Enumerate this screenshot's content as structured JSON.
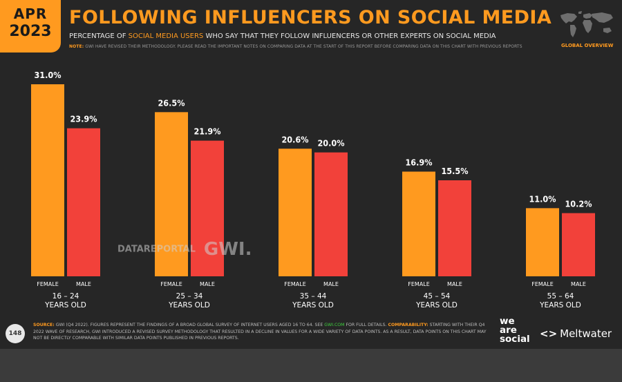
{
  "header": {
    "month": "APR",
    "year": "2023",
    "title": "FOLLOWING INFLUENCERS ON SOCIAL MEDIA",
    "subtitle_pre": "PERCENTAGE OF ",
    "subtitle_highlight": "SOCIAL MEDIA USERS",
    "subtitle_post": " WHO SAY THAT THEY FOLLOW INFLUENCERS OR OTHER EXPERTS ON SOCIAL MEDIA",
    "note_label": "NOTE:",
    "note_text": " GWI HAVE REVISED THEIR METHODOLOGY. PLEASE READ THE IMPORTANT NOTES ON COMPARING DATA AT THE START OF THIS REPORT BEFORE COMPARING DATA ON THIS CHART WITH PREVIOUS REPORTS",
    "section_label": "GLOBAL OVERVIEW"
  },
  "chart_data": {
    "type": "bar",
    "categories": [
      "16 – 24\nYEARS OLD",
      "25 – 34\nYEARS OLD",
      "35 – 44\nYEARS OLD",
      "45 – 54\nYEARS OLD",
      "55 – 64\nYEARS OLD"
    ],
    "series": [
      {
        "name": "FEMALE",
        "values": [
          31.0,
          26.5,
          20.6,
          16.9,
          11.0
        ],
        "color": "#FF9A1F"
      },
      {
        "name": "MALE",
        "values": [
          23.9,
          21.9,
          20.0,
          15.5,
          10.2
        ],
        "color": "#F2413A"
      }
    ],
    "value_suffix": "%",
    "ylim": [
      0,
      31
    ]
  },
  "watermark": {
    "dr": "DATAREPORTAL",
    "gwi": "GWI."
  },
  "footer": {
    "page_number": "148",
    "source_label": "SOURCE:",
    "source_text": " GWI (Q4 2022). FIGURES REPRESENT THE FINDINGS OF A BROAD GLOBAL SURVEY OF INTERNET USERS AGED 16 TO 64. SEE ",
    "source_link": "GWI.COM",
    "source_text2": " FOR FULL DETAILS. ",
    "comparability_label": "COMPARABILITY:",
    "comparability_text": " STARTING WITH THEIR Q4 2022 WAVE OF RESEARCH, GWI INTRODUCED A REVISED SURVEY METHODOLOGY THAT RESULTED IN A DECLINE IN VALUES FOR A WIDE VARIETY OF DATA POINTS. AS A RESULT, DATA POINTS ON THIS CHART MAY NOT BE DIRECTLY COMPARABLE WITH SIMILAR DATA POINTS PUBLISHED IN PREVIOUS REPORTS.",
    "was_line1": "we",
    "was_line2": "are",
    "was_line3": "social",
    "meltwater": "Meltwater"
  }
}
